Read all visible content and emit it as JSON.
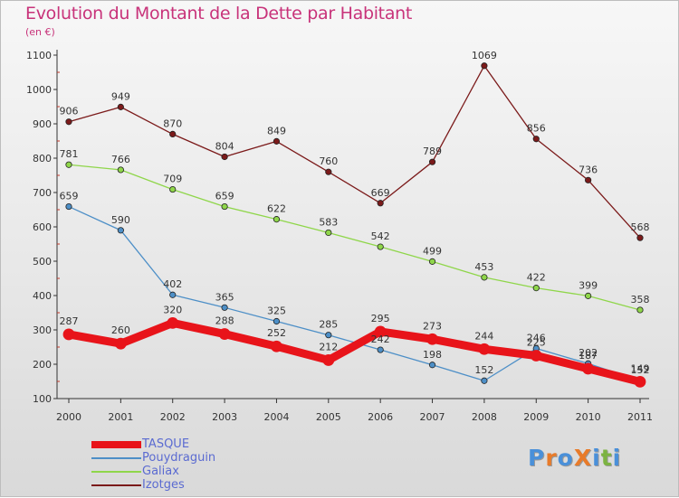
{
  "title": "Evolution du Montant de la Dette par Habitant",
  "subtitle": "(en €)",
  "logo": {
    "text": "ProXiti",
    "letters": [
      "P",
      "r",
      "o",
      "X",
      "i",
      "t",
      "i"
    ],
    "colors": [
      "#4a90d9",
      "#e87b2a",
      "#4a90d9",
      "#e87b2a",
      "#4a90d9",
      "#7cb342",
      "#4a90d9"
    ]
  },
  "chart_data": {
    "type": "line",
    "title": "Evolution du Montant de la Dette par Habitant",
    "ylabel": "(en €)",
    "xlabel": "",
    "x": [
      "2000",
      "2001",
      "2002",
      "2003",
      "2004",
      "2005",
      "2006",
      "2007",
      "2008",
      "2009",
      "2010",
      "2011"
    ],
    "yticks": [
      "100",
      "200",
      "300",
      "400",
      "500",
      "600",
      "700",
      "800",
      "900",
      "1000",
      "1100"
    ],
    "ylim": [
      100,
      1100
    ],
    "grid": false,
    "legend_position": "bottom-left",
    "series": [
      {
        "name": "Izotges",
        "color": "#7b1a1a",
        "values": [
          906,
          949,
          870,
          804,
          849,
          760,
          669,
          789,
          1069,
          856,
          736,
          568
        ]
      },
      {
        "name": "Galiax",
        "color": "#8fd64a",
        "values": [
          781,
          766,
          709,
          659,
          622,
          583,
          542,
          499,
          453,
          422,
          399,
          358
        ]
      },
      {
        "name": "Pouydraguin",
        "color": "#4d8fc7",
        "values": [
          659,
          590,
          402,
          365,
          325,
          285,
          242,
          198,
          152,
          246,
          202,
          152
        ]
      },
      {
        "name": "TASQUE",
        "color": "#e8141a",
        "values": [
          287,
          260,
          320,
          288,
          252,
          212,
          295,
          273,
          244,
          225,
          187,
          149
        ]
      }
    ]
  }
}
